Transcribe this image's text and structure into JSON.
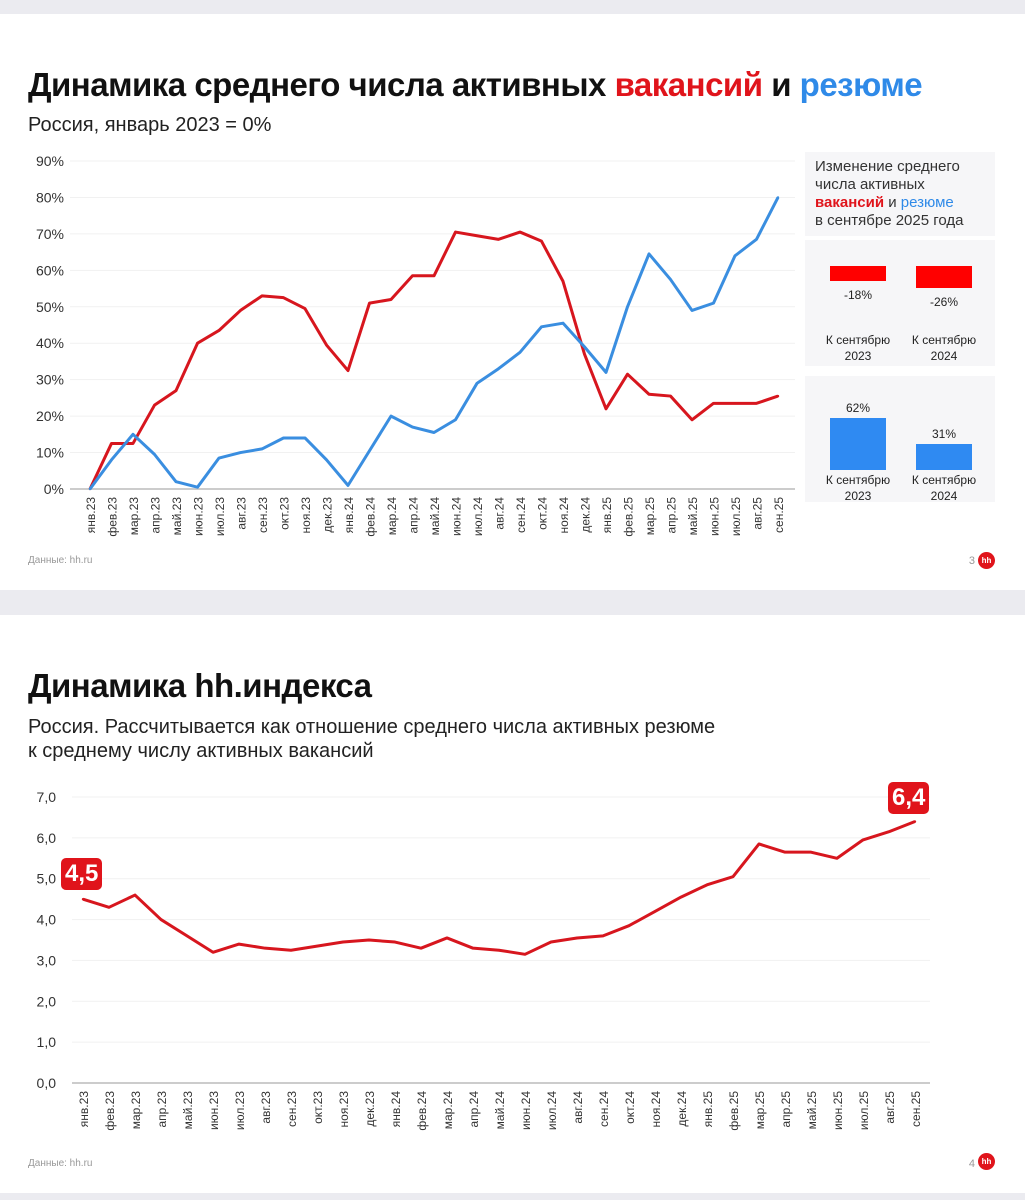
{
  "slide1": {
    "title_prefix": "Динамика среднего числа активных",
    "title_red": "вакансий",
    "title_and": "и",
    "title_blue": "резюме",
    "subtitle": "Россия, январь 2023 = 0%",
    "footer": "Данные: hh.ru",
    "page_number": "3",
    "logo": "hh",
    "panel": {
      "title_line1": "Изменение среднего",
      "title_line2": "числа активных",
      "title_red": "вакансий",
      "title_and": "и",
      "title_blue": "резюме",
      "title_line4": "в сентябре 2025 года",
      "vacancies": [
        {
          "value": -18,
          "label": "-18%",
          "cat1": "К сентябрю",
          "cat2": "2023"
        },
        {
          "value": -26,
          "label": "-26%",
          "cat1": "К сентябрю",
          "cat2": "2024"
        }
      ],
      "resumes": [
        {
          "value": 62,
          "label": "62%",
          "cat1": "К сентябрю",
          "cat2": "2023"
        },
        {
          "value": 31,
          "label": "31%",
          "cat1": "К сентябрю",
          "cat2": "2024"
        }
      ]
    }
  },
  "slide2": {
    "title": "Динамика hh.индекса",
    "subtitle_line1": "Россия. Рассчитывается как отношение среднего числа активных резюме",
    "subtitle_line2": "к среднему числу активных вакансий",
    "footer": "Данные: hh.ru",
    "page_number": "4",
    "logo": "hh",
    "badge_first": "4,5",
    "badge_last": "6,4"
  },
  "colors": {
    "vacancies": "#d7161e",
    "resumes": "#3a8ee0",
    "index": "#d7161e",
    "panel_red": "#ff0000",
    "panel_blue": "#2f8af2"
  },
  "chart_data": [
    {
      "type": "line",
      "categories": [
        "янв.23",
        "фев.23",
        "мар.23",
        "апр.23",
        "май.23",
        "июн.23",
        "июл.23",
        "авг.23",
        "сен.23",
        "окт.23",
        "ноя.23",
        "дек.23",
        "янв.24",
        "фев.24",
        "мар.24",
        "апр.24",
        "май.24",
        "июн.24",
        "июл.24",
        "авг.24",
        "сен.24",
        "окт.24",
        "ноя.24",
        "дек.24",
        "янв.25",
        "фев.25",
        "мар.25",
        "апр.25",
        "май.25",
        "июн.25",
        "июл.25",
        "авг.25",
        "сен.25"
      ],
      "yticks": [
        "0%",
        "10%",
        "20%",
        "30%",
        "40%",
        "50%",
        "60%",
        "70%",
        "80%",
        "90%"
      ],
      "ylim": [
        0,
        90
      ],
      "grid": true,
      "series": [
        {
          "name": "вакансий",
          "values": [
            0,
            12.5,
            12.5,
            23,
            27,
            40,
            43.5,
            49,
            53,
            52.5,
            49.5,
            39.5,
            32.5,
            51,
            52,
            58.5,
            58.5,
            70.5,
            69.5,
            68.5,
            70.5,
            68,
            57,
            37,
            22,
            31.5,
            26,
            25.5,
            19,
            23.5,
            23.5,
            23.5,
            25.5
          ]
        },
        {
          "name": "резюме",
          "values": [
            0,
            8,
            15,
            9.5,
            2,
            0.5,
            8.5,
            10,
            11,
            14,
            14,
            8,
            1,
            10.5,
            20,
            17,
            15.5,
            19,
            29,
            33,
            37.5,
            44.5,
            45.5,
            39,
            32,
            50,
            64.5,
            57.5,
            49,
            51,
            64,
            68.5,
            80
          ]
        }
      ]
    },
    {
      "type": "line",
      "categories": [
        "янв.23",
        "фев.23",
        "мар.23",
        "апр.23",
        "май.23",
        "июн.23",
        "июл.23",
        "авг.23",
        "сен.23",
        "окт.23",
        "ноя.23",
        "дек.23",
        "янв.24",
        "фев.24",
        "мар.24",
        "апр.24",
        "май.24",
        "июн.24",
        "июл.24",
        "авг.24",
        "сен.24",
        "окт.24",
        "ноя.24",
        "дек.24",
        "янв.25",
        "фев.25",
        "мар.25",
        "апр.25",
        "май.25",
        "июн.25",
        "июл.25",
        "авг.25",
        "сен.25"
      ],
      "yticks": [
        "0,0",
        "1,0",
        "2,0",
        "3,0",
        "4,0",
        "5,0",
        "6,0",
        "7,0"
      ],
      "ylim": [
        0,
        7
      ],
      "grid": true,
      "series": [
        {
          "values": [
            4.5,
            4.3,
            4.6,
            4.0,
            3.6,
            3.2,
            3.4,
            3.3,
            3.25,
            3.35,
            3.45,
            3.5,
            3.45,
            3.3,
            3.55,
            3.3,
            3.25,
            3.15,
            3.45,
            3.55,
            3.6,
            3.85,
            4.2,
            4.55,
            4.85,
            5.05,
            5.85,
            5.65,
            5.65,
            5.5,
            5.95,
            6.15,
            6.4
          ]
        }
      ]
    }
  ]
}
